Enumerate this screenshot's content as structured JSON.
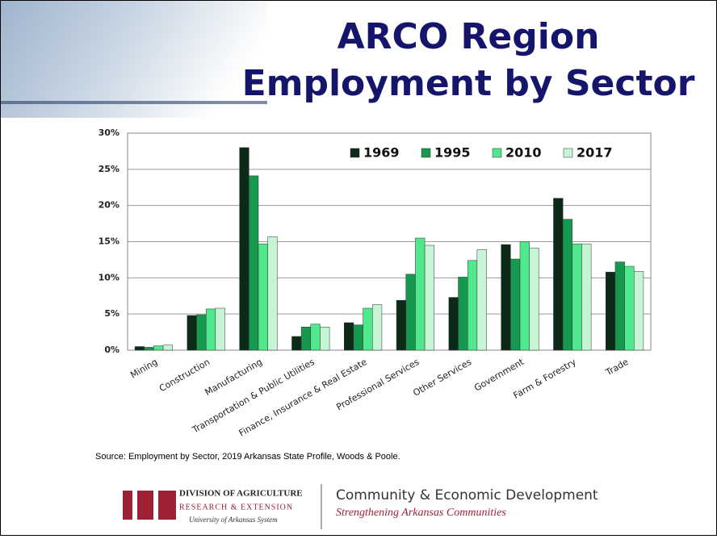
{
  "slide": {
    "title_lines": [
      "ARCO Region",
      "Employment by Sector"
    ],
    "source": "Source: Employment by Sector, 2019 Arkansas State Profile, Woods & Poole.",
    "footer": {
      "division": "DIVISION OF AGRICULTURE",
      "research": "RESEARCH & EXTENSION",
      "system": "University of Arkansas System",
      "program": "Community & Economic Development",
      "tagline": "Strengthening Arkansas Communities"
    }
  },
  "chart_data": {
    "type": "bar",
    "categories": [
      "Mining",
      "Construction",
      "Manufacturing",
      "Transportation & Public Utilities",
      "Finance, Insurance & Real Estate",
      "Professional Services",
      "Other Services",
      "Government",
      "Farm & Forestry",
      "Trade"
    ],
    "series": [
      {
        "name": "1969",
        "color": "#0c2a18",
        "values": [
          0.5,
          4.8,
          28.0,
          1.9,
          3.8,
          6.9,
          7.3,
          14.6,
          21.0,
          10.8
        ]
      },
      {
        "name": "1995",
        "color": "#16994e",
        "values": [
          0.4,
          4.9,
          24.1,
          3.2,
          3.5,
          10.5,
          10.1,
          12.6,
          18.1,
          12.2
        ]
      },
      {
        "name": "2010",
        "color": "#4fe88c",
        "values": [
          0.6,
          5.7,
          14.7,
          3.6,
          5.8,
          15.5,
          12.4,
          15.0,
          14.7,
          11.6
        ]
      },
      {
        "name": "2017",
        "color": "#c6f5d6",
        "values": [
          0.7,
          5.8,
          15.7,
          3.2,
          6.3,
          14.5,
          13.9,
          14.1,
          14.7,
          10.9
        ]
      }
    ],
    "ylim": [
      0,
      30
    ],
    "yticks": [
      {
        "value": 0,
        "label": "0%"
      },
      {
        "value": 5,
        "label": "5%"
      },
      {
        "value": 10,
        "label": "10%"
      },
      {
        "value": 15,
        "label": "15%"
      },
      {
        "value": 20,
        "label": "20%"
      },
      {
        "value": 25,
        "label": "25%"
      },
      {
        "value": 30,
        "label": "30%"
      }
    ],
    "grid": true,
    "legend": "top-right"
  }
}
